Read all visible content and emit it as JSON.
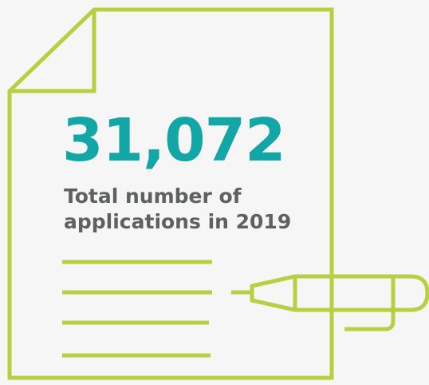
{
  "stat": {
    "value": "31,072",
    "label_line_1": "Total number of",
    "label_line_2": "applications in 2019"
  },
  "colors": {
    "background": "#f5f6f5",
    "outline": "#b9cf3f",
    "value": "#13a6a7",
    "label": "#5f6062"
  },
  "icons": {
    "document": "document-icon",
    "pen": "pen-icon"
  }
}
